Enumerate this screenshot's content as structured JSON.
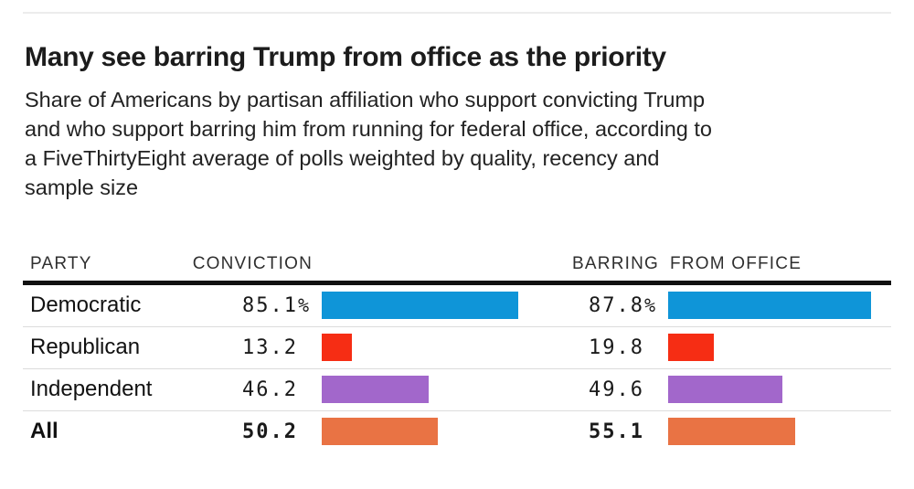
{
  "header": {
    "title": "Many see barring Trump from office as the priority",
    "subtitle_lines": [
      "Share of Americans by partisan affiliation who support convicting Trump",
      "and who support barring him from running for federal office, according to",
      "a FiveThirtyEight average of polls weighted by quality, recency and",
      "sample size"
    ]
  },
  "table": {
    "headers": {
      "party": "PARTY",
      "conviction": "CONVICTION",
      "barring": "BARRING",
      "from_office": "FROM OFFICE"
    }
  },
  "chart_data": {
    "type": "bar",
    "title": "Many see barring Trump from office as the priority",
    "subtitle": "Share of Americans by partisan affiliation who support convicting Trump and who support barring him from running for federal office, according to a FiveThirtyEight average of polls weighted by quality, recency and sample size",
    "unit": "percent",
    "xlim": [
      0,
      100
    ],
    "grid": false,
    "orientation": "horizontal",
    "categories": [
      "Democratic",
      "Republican",
      "Independent",
      "All"
    ],
    "series": [
      {
        "name": "Conviction",
        "values": [
          85.1,
          13.2,
          46.2,
          50.2
        ]
      },
      {
        "name": "Barring from office",
        "values": [
          87.8,
          19.8,
          49.6,
          55.1
        ]
      }
    ],
    "rows": [
      {
        "party": "Democratic",
        "conviction": "85.1",
        "barring": "87.8",
        "suffix": "%",
        "color": "#0f95d8",
        "bold": false
      },
      {
        "party": "Republican",
        "conviction": "13.2",
        "barring": "19.8",
        "suffix": "",
        "color": "#f62d14",
        "bold": false
      },
      {
        "party": "Independent",
        "conviction": "46.2",
        "barring": "49.6",
        "suffix": "",
        "color": "#a267cb",
        "bold": false
      },
      {
        "party": "All",
        "conviction": "50.2",
        "barring": "55.1",
        "suffix": "",
        "color": "#e97344",
        "bold": true
      }
    ],
    "colors": {
      "democratic": "#0f95d8",
      "republican": "#f62d14",
      "independent": "#a267cb",
      "all": "#e97344",
      "header_rule": "#111111",
      "row_divider": "#dcdcdc",
      "top_rule": "#ececec"
    }
  }
}
